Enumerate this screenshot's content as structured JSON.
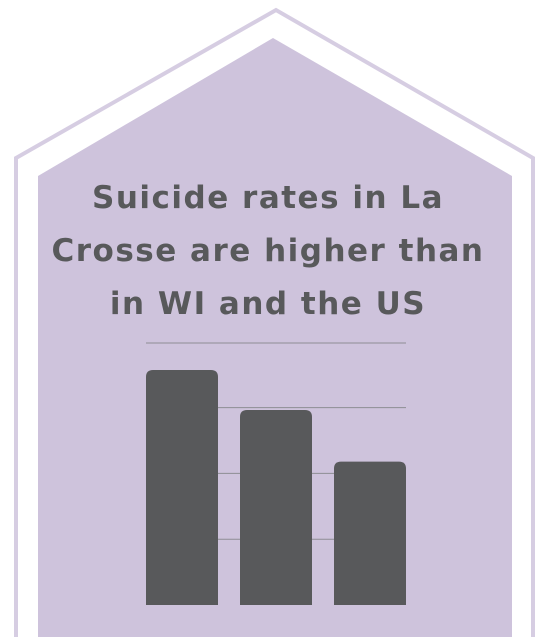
{
  "headline": "Suicide rates in La Crosse are higher than in WI and the US",
  "colors": {
    "house_fill": "#cec3dc",
    "house_outline": "#d6cde2",
    "bar_fill": "#58595b",
    "headline_text": "#58595b",
    "gridline": "#8d8d93",
    "background": "#ffffff"
  },
  "chart_data": {
    "type": "bar",
    "title": "Suicide rates in La Crosse are higher than in WI and the US",
    "categories": [
      "",
      "",
      ""
    ],
    "values": [
      100,
      83,
      61
    ],
    "xlabel": "",
    "ylabel": "",
    "ylim": [
      0,
      100
    ],
    "grid": true,
    "gridlines": [
      28,
      56,
      84
    ],
    "legend": "none",
    "value_scale": "relative (no axis or data labels printed)"
  }
}
